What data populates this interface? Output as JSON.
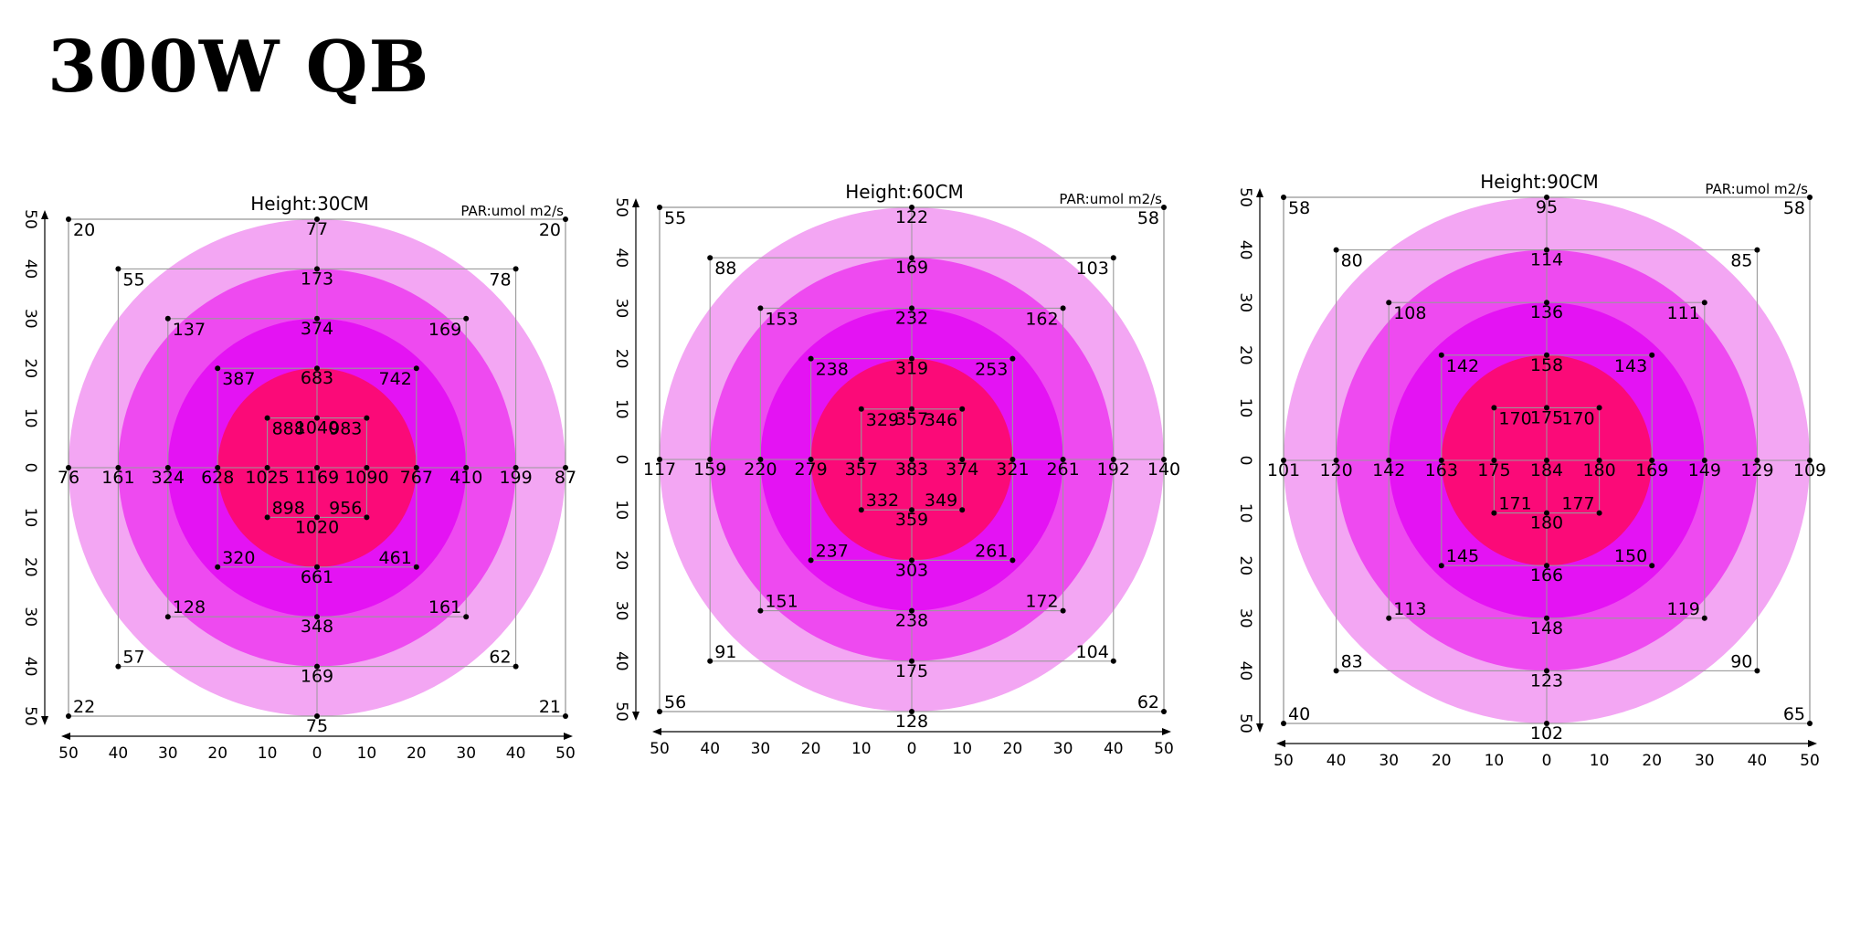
{
  "page": {
    "title": "300W QB"
  },
  "colors": {
    "ring_outer": "#f3a6f3",
    "ring_mid": "#ee4af0",
    "ring_inner": "#e413f3",
    "core": "#fb0a78",
    "frame": "#999999",
    "axis": "#000000"
  },
  "chart_data": [
    {
      "type": "heatmap",
      "title": "Height:30CM",
      "unit_label": "PAR:umol m2/s",
      "xlim": [
        -50,
        50
      ],
      "ylim": [
        -50,
        50
      ],
      "x_tick_labels": [
        "50",
        "40",
        "30",
        "20",
        "10",
        "0",
        "10",
        "20",
        "30",
        "40",
        "50"
      ],
      "y_tick_labels": [
        "50",
        "40",
        "30",
        "20",
        "10",
        "0",
        "10",
        "20",
        "30",
        "40",
        "50"
      ],
      "points": [
        {
          "x": -50,
          "y": 50,
          "v": 20
        },
        {
          "x": 0,
          "y": 50,
          "v": 77
        },
        {
          "x": 50,
          "y": 50,
          "v": 20
        },
        {
          "x": -40,
          "y": 40,
          "v": 55
        },
        {
          "x": 0,
          "y": 40,
          "v": 173
        },
        {
          "x": 40,
          "y": 40,
          "v": 78
        },
        {
          "x": -30,
          "y": 30,
          "v": 137
        },
        {
          "x": 0,
          "y": 30,
          "v": 374
        },
        {
          "x": 30,
          "y": 30,
          "v": 169
        },
        {
          "x": -20,
          "y": 20,
          "v": 387
        },
        {
          "x": 0,
          "y": 20,
          "v": 683
        },
        {
          "x": 20,
          "y": 20,
          "v": 742
        },
        {
          "x": -10,
          "y": 10,
          "v": 888
        },
        {
          "x": 0,
          "y": 10,
          "v": 1040
        },
        {
          "x": 10,
          "y": 10,
          "v": 983
        },
        {
          "x": -50,
          "y": 0,
          "v": 76
        },
        {
          "x": -40,
          "y": 0,
          "v": 161
        },
        {
          "x": -30,
          "y": 0,
          "v": 324
        },
        {
          "x": -20,
          "y": 0,
          "v": 628
        },
        {
          "x": -10,
          "y": 0,
          "v": 1025
        },
        {
          "x": 0,
          "y": 0,
          "v": 1169
        },
        {
          "x": 10,
          "y": 0,
          "v": 1090
        },
        {
          "x": 20,
          "y": 0,
          "v": 767
        },
        {
          "x": 30,
          "y": 0,
          "v": 410
        },
        {
          "x": 40,
          "y": 0,
          "v": 199
        },
        {
          "x": 50,
          "y": 0,
          "v": 87
        },
        {
          "x": -10,
          "y": -10,
          "v": 898
        },
        {
          "x": 0,
          "y": -10,
          "v": 1020
        },
        {
          "x": 10,
          "y": -10,
          "v": 956
        },
        {
          "x": -20,
          "y": -20,
          "v": 320
        },
        {
          "x": 0,
          "y": -20,
          "v": 661
        },
        {
          "x": 20,
          "y": -20,
          "v": 461
        },
        {
          "x": -30,
          "y": -30,
          "v": 128
        },
        {
          "x": 0,
          "y": -30,
          "v": 348
        },
        {
          "x": 30,
          "y": -30,
          "v": 161
        },
        {
          "x": -40,
          "y": -40,
          "v": 57
        },
        {
          "x": 0,
          "y": -40,
          "v": 169
        },
        {
          "x": 40,
          "y": -40,
          "v": 62
        },
        {
          "x": -50,
          "y": -50,
          "v": 22
        },
        {
          "x": 0,
          "y": -50,
          "v": 75
        },
        {
          "x": 50,
          "y": -50,
          "v": 21
        }
      ]
    },
    {
      "type": "heatmap",
      "title": "Height:60CM",
      "unit_label": "PAR:umol m2/s",
      "xlim": [
        -50,
        50
      ],
      "ylim": [
        -50,
        50
      ],
      "x_tick_labels": [
        "50",
        "40",
        "30",
        "20",
        "10",
        "0",
        "10",
        "20",
        "30",
        "40",
        "50"
      ],
      "y_tick_labels": [
        "50",
        "40",
        "30",
        "20",
        "10",
        "0",
        "10",
        "20",
        "30",
        "40",
        "50"
      ],
      "points": [
        {
          "x": -50,
          "y": 50,
          "v": 55
        },
        {
          "x": 0,
          "y": 50,
          "v": 122
        },
        {
          "x": 50,
          "y": 50,
          "v": 58
        },
        {
          "x": -40,
          "y": 40,
          "v": 88
        },
        {
          "x": 0,
          "y": 40,
          "v": 169
        },
        {
          "x": 40,
          "y": 40,
          "v": 103
        },
        {
          "x": -30,
          "y": 30,
          "v": 153
        },
        {
          "x": 0,
          "y": 30,
          "v": 232
        },
        {
          "x": 30,
          "y": 30,
          "v": 162
        },
        {
          "x": -20,
          "y": 20,
          "v": 238
        },
        {
          "x": 0,
          "y": 20,
          "v": 319
        },
        {
          "x": 20,
          "y": 20,
          "v": 253
        },
        {
          "x": -10,
          "y": 10,
          "v": 329
        },
        {
          "x": 0,
          "y": 10,
          "v": 357
        },
        {
          "x": 10,
          "y": 10,
          "v": 346
        },
        {
          "x": -50,
          "y": 0,
          "v": 117
        },
        {
          "x": -40,
          "y": 0,
          "v": 159
        },
        {
          "x": -30,
          "y": 0,
          "v": 220
        },
        {
          "x": -20,
          "y": 0,
          "v": 279
        },
        {
          "x": -10,
          "y": 0,
          "v": 357
        },
        {
          "x": 0,
          "y": 0,
          "v": 383
        },
        {
          "x": 10,
          "y": 0,
          "v": 374
        },
        {
          "x": 20,
          "y": 0,
          "v": 321
        },
        {
          "x": 30,
          "y": 0,
          "v": 261
        },
        {
          "x": 40,
          "y": 0,
          "v": 192
        },
        {
          "x": 50,
          "y": 0,
          "v": 140
        },
        {
          "x": -10,
          "y": -10,
          "v": 332
        },
        {
          "x": 0,
          "y": -10,
          "v": 359
        },
        {
          "x": 10,
          "y": -10,
          "v": 349
        },
        {
          "x": -20,
          "y": -20,
          "v": 237
        },
        {
          "x": 0,
          "y": -20,
          "v": 303
        },
        {
          "x": 20,
          "y": -20,
          "v": 261
        },
        {
          "x": -30,
          "y": -30,
          "v": 151
        },
        {
          "x": 0,
          "y": -30,
          "v": 238
        },
        {
          "x": 30,
          "y": -30,
          "v": 172
        },
        {
          "x": -40,
          "y": -40,
          "v": 91
        },
        {
          "x": 0,
          "y": -40,
          "v": 175
        },
        {
          "x": 40,
          "y": -40,
          "v": 104
        },
        {
          "x": -50,
          "y": -50,
          "v": 56
        },
        {
          "x": 0,
          "y": -50,
          "v": 128
        },
        {
          "x": 50,
          "y": -50,
          "v": 62
        }
      ]
    },
    {
      "type": "heatmap",
      "title": "Height:90CM",
      "unit_label": "PAR:umol m2/s",
      "xlim": [
        -50,
        50
      ],
      "ylim": [
        -50,
        50
      ],
      "x_tick_labels": [
        "50",
        "40",
        "30",
        "20",
        "10",
        "0",
        "10",
        "20",
        "30",
        "40",
        "50"
      ],
      "y_tick_labels": [
        "50",
        "40",
        "30",
        "20",
        "10",
        "0",
        "10",
        "20",
        "30",
        "40",
        "50"
      ],
      "points": [
        {
          "x": -50,
          "y": 50,
          "v": 58
        },
        {
          "x": 0,
          "y": 50,
          "v": 95
        },
        {
          "x": 50,
          "y": 50,
          "v": 58
        },
        {
          "x": -40,
          "y": 40,
          "v": 80
        },
        {
          "x": 0,
          "y": 40,
          "v": 114
        },
        {
          "x": 40,
          "y": 40,
          "v": 85
        },
        {
          "x": -30,
          "y": 30,
          "v": 108
        },
        {
          "x": 0,
          "y": 30,
          "v": 136
        },
        {
          "x": 30,
          "y": 30,
          "v": 111
        },
        {
          "x": -20,
          "y": 20,
          "v": 142
        },
        {
          "x": 0,
          "y": 20,
          "v": 158
        },
        {
          "x": 20,
          "y": 20,
          "v": 143
        },
        {
          "x": -10,
          "y": 10,
          "v": 170
        },
        {
          "x": 0,
          "y": 10,
          "v": 175
        },
        {
          "x": 10,
          "y": 10,
          "v": 170
        },
        {
          "x": -50,
          "y": 0,
          "v": 101
        },
        {
          "x": -40,
          "y": 0,
          "v": 120
        },
        {
          "x": -30,
          "y": 0,
          "v": 142
        },
        {
          "x": -20,
          "y": 0,
          "v": 163
        },
        {
          "x": -10,
          "y": 0,
          "v": 175
        },
        {
          "x": 0,
          "y": 0,
          "v": 184
        },
        {
          "x": 10,
          "y": 0,
          "v": 180
        },
        {
          "x": 20,
          "y": 0,
          "v": 169
        },
        {
          "x": 30,
          "y": 0,
          "v": 149
        },
        {
          "x": 40,
          "y": 0,
          "v": 129
        },
        {
          "x": 50,
          "y": 0,
          "v": 109
        },
        {
          "x": -10,
          "y": -10,
          "v": 171
        },
        {
          "x": 0,
          "y": -10,
          "v": 180
        },
        {
          "x": 10,
          "y": -10,
          "v": 177
        },
        {
          "x": -20,
          "y": -20,
          "v": 145
        },
        {
          "x": 0,
          "y": -20,
          "v": 166
        },
        {
          "x": 20,
          "y": -20,
          "v": 150
        },
        {
          "x": -30,
          "y": -30,
          "v": 113
        },
        {
          "x": 0,
          "y": -30,
          "v": 148
        },
        {
          "x": 30,
          "y": -30,
          "v": 119
        },
        {
          "x": -40,
          "y": -40,
          "v": 83
        },
        {
          "x": 0,
          "y": -40,
          "v": 123
        },
        {
          "x": 40,
          "y": -40,
          "v": 90
        },
        {
          "x": -50,
          "y": -50,
          "v": 40
        },
        {
          "x": 0,
          "y": -50,
          "v": 102
        },
        {
          "x": 50,
          "y": -50,
          "v": 65
        }
      ]
    }
  ]
}
